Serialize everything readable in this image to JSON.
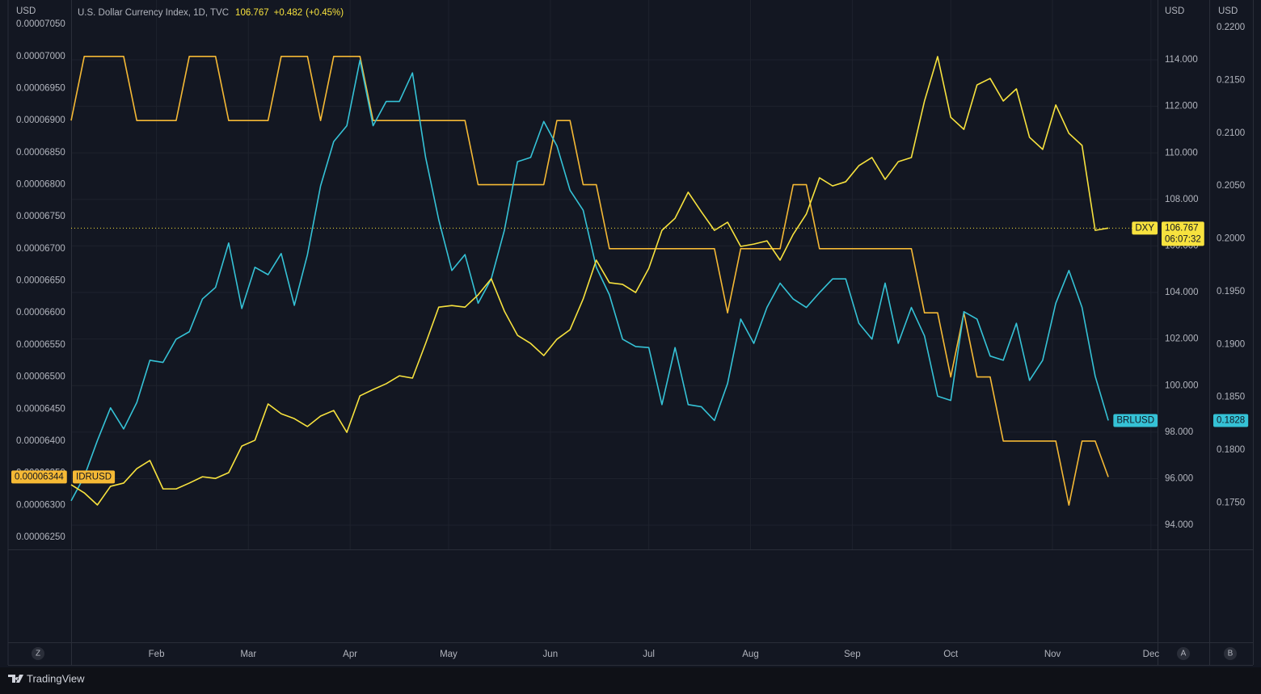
{
  "chart_data": {
    "type": "line",
    "title": "U.S. Dollar Currency Index, 1D, TVC",
    "header_price": 106.767,
    "header_change": "+0.482",
    "header_change_pct": "(+0.45%)",
    "y_unit": "USD",
    "y2_unit": "USD",
    "y3_unit": "USD",
    "x": [
      6,
      10,
      14,
      18,
      22,
      26,
      30,
      34,
      38,
      42,
      46,
      50,
      54,
      58,
      62,
      66,
      70,
      74,
      78,
      82,
      86,
      90,
      94,
      98,
      102,
      106,
      110,
      114,
      118,
      122,
      126,
      130,
      134,
      138,
      142,
      146,
      150,
      154,
      158,
      162,
      166,
      170,
      174,
      178,
      182,
      186,
      190,
      194,
      198,
      202,
      206,
      210,
      214,
      218,
      222,
      226,
      230,
      234,
      238,
      242,
      246,
      250,
      254,
      258,
      262,
      266,
      270,
      274,
      278,
      282,
      286,
      290,
      294,
      298,
      302,
      306,
      310,
      314,
      318,
      322
    ],
    "xlim": [
      6,
      337
    ],
    "xticks": [
      {
        "value": 32,
        "label": "Feb"
      },
      {
        "value": 60,
        "label": "Mar"
      },
      {
        "value": 91,
        "label": "Apr"
      },
      {
        "value": 121,
        "label": "May"
      },
      {
        "value": 152,
        "label": "Jun"
      },
      {
        "value": 182,
        "label": "Jul"
      },
      {
        "value": 213,
        "label": "Aug"
      },
      {
        "value": 244,
        "label": "Sep"
      },
      {
        "value": 274,
        "label": "Oct"
      },
      {
        "value": 305,
        "label": "Nov"
      },
      {
        "value": 335,
        "label": "Dec"
      }
    ],
    "ylim": [
      6.231e-05,
      7.088e-05
    ],
    "yticks": [
      {
        "value": 6.25e-05,
        "label": "0.00006250"
      },
      {
        "value": 6.3e-05,
        "label": "0.00006300"
      },
      {
        "value": 6.35e-05,
        "label": "0.00006350"
      },
      {
        "value": 6.4e-05,
        "label": "0.00006400"
      },
      {
        "value": 6.45e-05,
        "label": "0.00006450"
      },
      {
        "value": 6.5e-05,
        "label": "0.00006500"
      },
      {
        "value": 6.55e-05,
        "label": "0.00006550"
      },
      {
        "value": 6.6e-05,
        "label": "0.00006600"
      },
      {
        "value": 6.65e-05,
        "label": "0.00006650"
      },
      {
        "value": 6.7e-05,
        "label": "0.00006700"
      },
      {
        "value": 6.75e-05,
        "label": "0.00006750"
      },
      {
        "value": 6.8e-05,
        "label": "0.00006800"
      },
      {
        "value": 6.85e-05,
        "label": "0.00006850"
      },
      {
        "value": 6.9e-05,
        "label": "0.00006900"
      },
      {
        "value": 6.95e-05,
        "label": "0.00006950"
      },
      {
        "value": 7e-05,
        "label": "0.00007000"
      },
      {
        "value": 7.05e-05,
        "label": "0.00007050"
      }
    ],
    "y2lim": [
      92.96,
      116.57
    ],
    "y2ticks": [
      {
        "value": 94,
        "label": "94.000"
      },
      {
        "value": 96,
        "label": "96.000"
      },
      {
        "value": 98,
        "label": "98.000"
      },
      {
        "value": 100,
        "label": "100.000"
      },
      {
        "value": 102,
        "label": "102.000"
      },
      {
        "value": 104,
        "label": "104.000"
      },
      {
        "value": 106,
        "label": "106.000"
      },
      {
        "value": 108,
        "label": "108.000"
      },
      {
        "value": 110,
        "label": "110.000"
      },
      {
        "value": 112,
        "label": "112.000"
      },
      {
        "value": 114,
        "label": "114.000"
      }
    ],
    "y3lim": [
      0.1706,
      0.2226
    ],
    "y3ticks": [
      {
        "value": 0.175,
        "label": "0.1750"
      },
      {
        "value": 0.18,
        "label": "0.1800"
      },
      {
        "value": 0.185,
        "label": "0.1850"
      },
      {
        "value": 0.19,
        "label": "0.1900"
      },
      {
        "value": 0.195,
        "label": "0.1950"
      },
      {
        "value": 0.2,
        "label": "0.2000"
      },
      {
        "value": 0.205,
        "label": "0.2050"
      },
      {
        "value": 0.21,
        "label": "0.2100"
      },
      {
        "value": 0.215,
        "label": "0.2150"
      },
      {
        "value": 0.22,
        "label": "0.2200"
      }
    ],
    "grid": true,
    "series": [
      {
        "name": "IDRUSD",
        "color": "#f5b935",
        "axis": "y",
        "values": [
          6.9e-05,
          7e-05,
          7e-05,
          7e-05,
          7e-05,
          6.9e-05,
          6.9e-05,
          6.9e-05,
          6.9e-05,
          7e-05,
          7e-05,
          7e-05,
          6.9e-05,
          6.9e-05,
          6.9e-05,
          6.9e-05,
          7e-05,
          7e-05,
          7e-05,
          6.9e-05,
          7e-05,
          7e-05,
          7e-05,
          6.9e-05,
          6.9e-05,
          6.9e-05,
          6.9e-05,
          6.9e-05,
          6.9e-05,
          6.9e-05,
          6.9e-05,
          6.8e-05,
          6.8e-05,
          6.8e-05,
          6.8e-05,
          6.8e-05,
          6.8e-05,
          6.9e-05,
          6.9e-05,
          6.8e-05,
          6.8e-05,
          6.7e-05,
          6.7e-05,
          6.7e-05,
          6.7e-05,
          6.7e-05,
          6.7e-05,
          6.7e-05,
          6.7e-05,
          6.7e-05,
          6.6e-05,
          6.7e-05,
          6.7e-05,
          6.7e-05,
          6.7e-05,
          6.8e-05,
          6.8e-05,
          6.7e-05,
          6.7e-05,
          6.7e-05,
          6.7e-05,
          6.7e-05,
          6.7e-05,
          6.7e-05,
          6.7e-05,
          6.6e-05,
          6.6e-05,
          6.5e-05,
          6.6e-05,
          6.5e-05,
          6.5e-05,
          6.4e-05,
          6.4e-05,
          6.4e-05,
          6.4e-05,
          6.4e-05,
          6.3e-05,
          6.4e-05,
          6.4e-05,
          6.344e-05
        ]
      },
      {
        "name": "BRLUSD",
        "color": "#35c2d6",
        "axis": "y3",
        "values": [
          0.1752,
          0.1775,
          0.1809,
          0.184,
          0.182,
          0.1845,
          0.1885,
          0.1883,
          0.1905,
          0.1912,
          0.1943,
          0.1954,
          0.1996,
          0.1934,
          0.1973,
          0.1966,
          0.1986,
          0.1937,
          0.1985,
          0.205,
          0.2092,
          0.2107,
          0.2169,
          0.2107,
          0.213,
          0.213,
          0.2157,
          0.2077,
          0.2018,
          0.197,
          0.1985,
          0.1939,
          0.1962,
          0.2008,
          0.2073,
          0.2077,
          0.2111,
          0.2088,
          0.2046,
          0.2027,
          0.1973,
          0.1947,
          0.1905,
          0.1898,
          0.1897,
          0.1843,
          0.1897,
          0.1843,
          0.1841,
          0.1828,
          0.1863,
          0.1924,
          0.1901,
          0.1935,
          0.1958,
          0.1943,
          0.1935,
          0.1949,
          0.1962,
          0.1962,
          0.192,
          0.1905,
          0.1958,
          0.1901,
          0.1935,
          0.1908,
          0.1851,
          0.1847,
          0.1931,
          0.1924,
          0.1889,
          0.1885,
          0.192,
          0.1866,
          0.1885,
          0.1939,
          0.197,
          0.1935,
          0.187,
          0.1828
        ]
      },
      {
        "name": "DXY",
        "color": "#f7e23e",
        "axis": "y2",
        "price_line": true,
        "countdown": "06:07:32",
        "values": [
          95.74,
          95.39,
          94.87,
          95.67,
          95.81,
          96.43,
          96.78,
          95.56,
          95.56,
          95.81,
          96.08,
          96.01,
          96.26,
          97.4,
          97.65,
          99.21,
          98.79,
          98.58,
          98.24,
          98.69,
          98.93,
          97.99,
          99.56,
          99.83,
          100.08,
          100.42,
          100.32,
          101.81,
          103.37,
          103.44,
          103.37,
          103.9,
          104.59,
          103.2,
          102.16,
          101.81,
          101.29,
          101.99,
          102.4,
          103.72,
          105.39,
          104.42,
          104.35,
          104.0,
          105.04,
          106.67,
          107.19,
          108.31,
          107.47,
          106.67,
          107.02,
          105.98,
          106.08,
          106.22,
          105.39,
          106.5,
          107.37,
          108.93,
          108.58,
          108.76,
          109.45,
          109.8,
          108.86,
          109.62,
          109.8,
          112.23,
          114.14,
          111.53,
          111.01,
          112.92,
          113.2,
          112.23,
          112.75,
          110.67,
          110.15,
          112.06,
          110.84,
          110.32,
          106.67,
          106.767
        ]
      }
    ]
  },
  "buttons": [
    "Z",
    "A",
    "B"
  ],
  "footer": {
    "brand": "TradingView"
  }
}
